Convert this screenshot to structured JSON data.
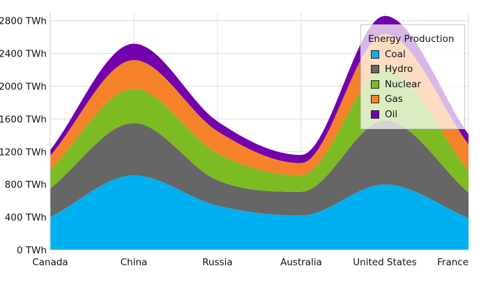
{
  "chart_data": {
    "type": "area",
    "stacked": true,
    "categories": [
      "Canada",
      "China",
      "Russia",
      "Australia",
      "United States",
      "France"
    ],
    "yaxis": {
      "min": 0,
      "max": 2900,
      "ticks": [
        0,
        400,
        800,
        1200,
        1600,
        2000,
        2400,
        2800
      ],
      "tick_labels": [
        "0 TWh",
        "400 TWh",
        "800 TWh",
        "1200 TWh",
        "1600 TWh",
        "2000 TWh",
        "2400 TWh",
        "2800 TWh"
      ]
    },
    "grid": true,
    "legend": {
      "title": "Energy Production",
      "placement": "top-right"
    },
    "series": [
      {
        "name": "Coal",
        "color": "#00b0f0",
        "values": [
          400,
          910,
          540,
          420,
          800,
          390
        ]
      },
      {
        "name": "Hydro",
        "color": "#666666",
        "values": [
          350,
          640,
          310,
          290,
          780,
          310
        ]
      },
      {
        "name": "Nuclear",
        "color": "#7cbb22",
        "values": [
          230,
          420,
          330,
          200,
          620,
          270
        ]
      },
      {
        "name": "Gas",
        "color": "#f5822a",
        "values": [
          170,
          350,
          270,
          150,
          440,
          320
        ]
      },
      {
        "name": "Oil",
        "color": "#7200ac",
        "values": [
          70,
          200,
          120,
          100,
          220,
          120
        ]
      }
    ]
  }
}
